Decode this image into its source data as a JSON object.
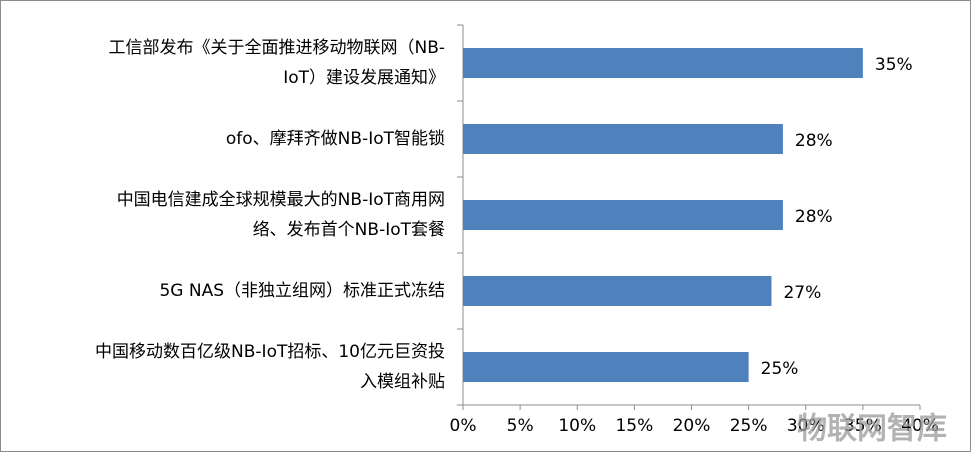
{
  "chart_data": {
    "type": "bar",
    "orientation": "horizontal",
    "categories": [
      "工信部发布《关于全面推进移动物联网（NB-\nIoT）建设发展通知》",
      "ofo、摩拜齐做NB-IoT智能锁",
      "中国电信建成全球规模最大的NB-IoT商用网\n络、发布首个NB-IoT套餐",
      "5G NAS（非独立组网）标准正式冻结",
      "中国移动数百亿级NB-IoT招标、10亿元巨资投\n入模组补贴"
    ],
    "values": [
      35,
      28,
      28,
      27,
      25
    ],
    "value_labels": [
      "35%",
      "28%",
      "28%",
      "27%",
      "25%"
    ],
    "color": "#4f81bd",
    "xlim": [
      0,
      40
    ],
    "xticks": [
      {
        "value": 0,
        "label": "0%"
      },
      {
        "value": 5,
        "label": "5%"
      },
      {
        "value": 10,
        "label": "10%"
      },
      {
        "value": 15,
        "label": "15%"
      },
      {
        "value": 20,
        "label": "20%"
      },
      {
        "value": 25,
        "label": "25%"
      },
      {
        "value": 30,
        "label": "30%"
      },
      {
        "value": 35,
        "label": "35%"
      },
      {
        "value": 40,
        "label": "40%"
      }
    ],
    "grid": false,
    "watermark": "物联网智库"
  }
}
